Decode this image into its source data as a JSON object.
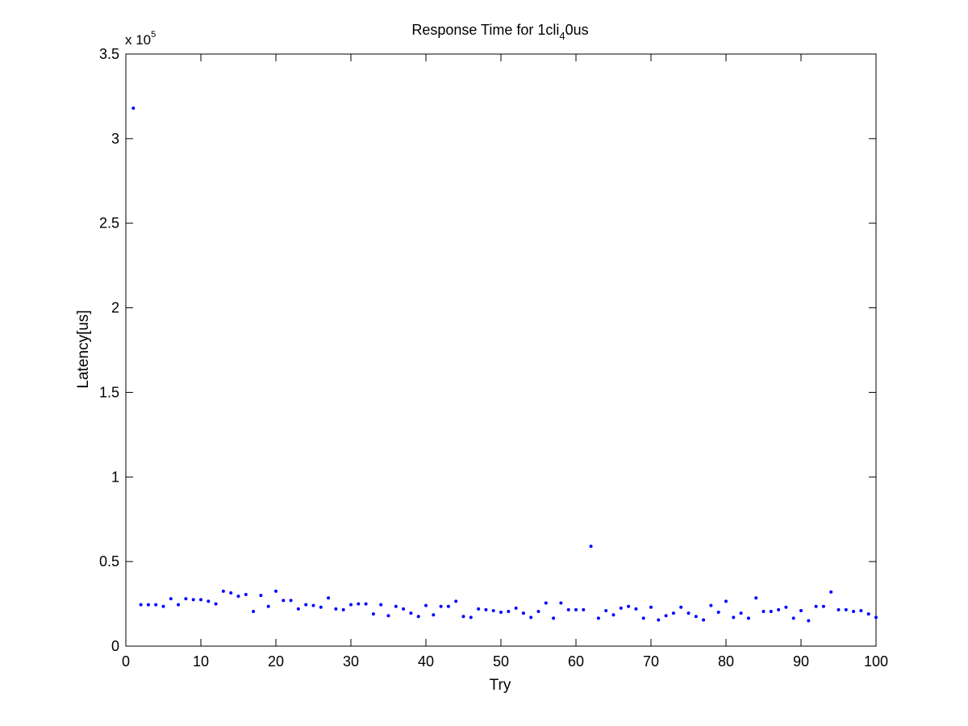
{
  "chart_data": {
    "type": "scatter",
    "title": {
      "prefix": "Response Time for 1cli",
      "subscript": "4",
      "suffix": "0us"
    },
    "xlabel": "Try",
    "ylabel": "Latency[us]",
    "xlim": [
      0,
      100
    ],
    "ylim": [
      0,
      350000
    ],
    "xticks": [
      0,
      10,
      20,
      30,
      40,
      50,
      60,
      70,
      80,
      90,
      100
    ],
    "xtick_labels": [
      "0",
      "10",
      "20",
      "30",
      "40",
      "50",
      "60",
      "70",
      "80",
      "90",
      "100"
    ],
    "yticks": [
      0,
      50000,
      100000,
      150000,
      200000,
      250000,
      300000,
      350000
    ],
    "ytick_labels": [
      "0",
      "0.5",
      "1",
      "1.5",
      "2",
      "2.5",
      "3",
      "3.5"
    ],
    "y_exponent": {
      "base": "x 10",
      "power": "5"
    },
    "grid": false,
    "legend": "none",
    "marker_color": "#0000ff",
    "series": [
      {
        "x": [
          1,
          2,
          3,
          4,
          5,
          6,
          7,
          8,
          9,
          10,
          11,
          12,
          13,
          14,
          15,
          16,
          17,
          18,
          19,
          20,
          21,
          22,
          23,
          24,
          25,
          26,
          27,
          28,
          29,
          30,
          31,
          32,
          33,
          34,
          35,
          36,
          37,
          38,
          39,
          40,
          41,
          42,
          43,
          44,
          45,
          46,
          47,
          48,
          49,
          50,
          51,
          52,
          53,
          54,
          55,
          56,
          57,
          58,
          59,
          60,
          61,
          62,
          63,
          64,
          65,
          66,
          67,
          68,
          69,
          70,
          71,
          72,
          73,
          74,
          75,
          76,
          77,
          78,
          79,
          80,
          81,
          82,
          83,
          84,
          85,
          86,
          87,
          88,
          89,
          90,
          91,
          92,
          93,
          94,
          95,
          96,
          97,
          98,
          99,
          100
        ],
        "values": [
          318000,
          24500,
          24500,
          24500,
          23500,
          28000,
          24500,
          28000,
          27500,
          27500,
          26500,
          25000,
          32500,
          31500,
          29500,
          30500,
          20500,
          30000,
          23500,
          32500,
          27000,
          27000,
          22000,
          24500,
          24000,
          23000,
          28500,
          22000,
          21500,
          24500,
          25000,
          25000,
          19000,
          24500,
          18000,
          23500,
          22000,
          19500,
          17500,
          24000,
          18500,
          23500,
          23500,
          26500,
          17500,
          17000,
          22000,
          21500,
          21000,
          20000,
          20500,
          22500,
          19500,
          17000,
          20500,
          25500,
          16500,
          25500,
          21500,
          21500,
          21500,
          59000,
          16500,
          21000,
          18500,
          22500,
          23500,
          22000,
          16500,
          23000,
          15500,
          18000,
          19500,
          23000,
          19500,
          17500,
          15500,
          24000,
          20000,
          26500,
          17000,
          19500,
          16500,
          28500,
          20500,
          20500,
          21500,
          23000,
          16500,
          21000,
          15000,
          23500,
          23500,
          32000,
          21500,
          21500,
          20500,
          21000,
          19000,
          17000
        ]
      }
    ]
  }
}
